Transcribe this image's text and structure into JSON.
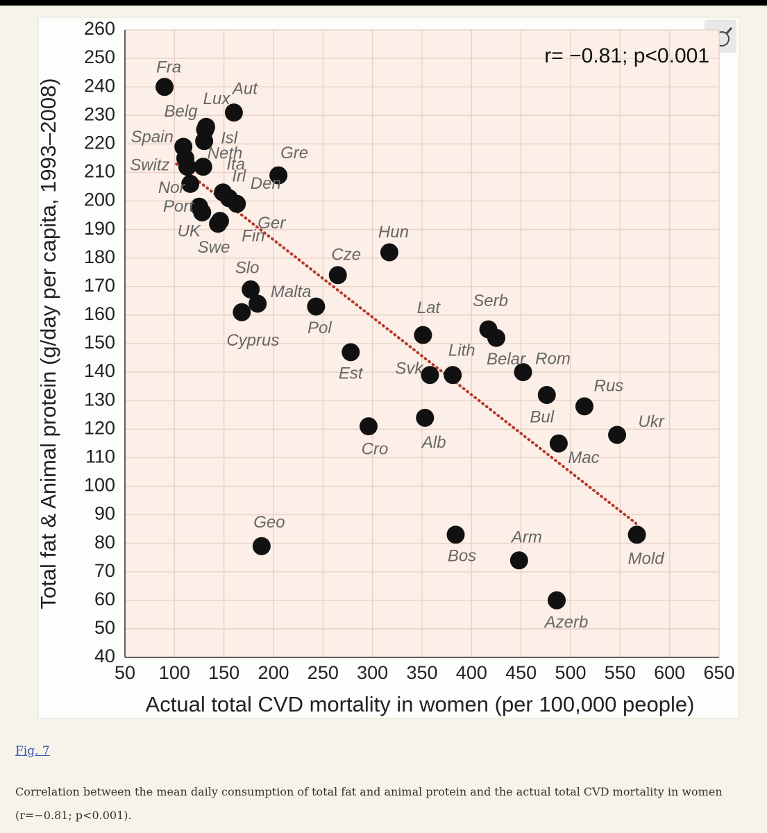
{
  "chart_data": {
    "type": "scatter",
    "annotation": "r= −0.81; p<0.001",
    "xlabel": "Actual total CVD  mortality in women (per 100,000 people)",
    "ylabel": "Total fat & Animal protein (g/day per capita, 1993–2008)",
    "labels": [
      "Fra",
      "Aut",
      "Lux",
      "Belg",
      "Isl",
      "Spain",
      "Neth",
      "Switz",
      "Ita",
      "Nor",
      "Gre",
      "Irl",
      "Den",
      "Port",
      "Ger",
      "UK",
      "Fin",
      "Swe",
      "Hun",
      "Cze",
      "Slo",
      "Malta",
      "Cyprus",
      "Pol",
      "Lat",
      "Serb",
      "Belar",
      "Rom",
      "Est",
      "Svk",
      "Lith",
      "Bul",
      "Rus",
      "Ukr",
      "Mac",
      "Cro",
      "Alb",
      "Geo",
      "Bos",
      "Arm",
      "Azerb",
      "Mold"
    ],
    "x": [
      90,
      160,
      132,
      131,
      130,
      109,
      111,
      113,
      129,
      116,
      205,
      149,
      155,
      125,
      163,
      128,
      146,
      144,
      317,
      265,
      177,
      184,
      168,
      243,
      351,
      417,
      425,
      452,
      278,
      358,
      381,
      476,
      514,
      547,
      488,
      296,
      353,
      188,
      384,
      448,
      486,
      567
    ],
    "y": [
      240,
      231,
      226,
      225,
      221,
      219,
      215,
      212,
      212,
      206,
      209,
      203,
      201,
      198,
      199,
      196,
      193,
      192,
      182,
      174,
      169,
      164,
      161,
      163,
      153,
      155,
      152,
      140,
      147,
      139,
      139,
      132,
      128,
      118,
      115,
      121,
      124,
      79,
      83,
      74,
      60,
      83
    ],
    "color": "#111111",
    "trendline": {
      "x": [
        102,
        566
      ],
      "y": [
        213,
        87
      ],
      "color": "#b5382c"
    },
    "xlim": [
      50,
      650
    ],
    "ylim": [
      40,
      260
    ],
    "xticks": [
      50,
      100,
      150,
      200,
      250,
      300,
      350,
      400,
      450,
      500,
      550,
      600,
      650
    ],
    "yticks": [
      40,
      50,
      60,
      70,
      80,
      90,
      100,
      110,
      120,
      130,
      140,
      150,
      160,
      170,
      180,
      190,
      200,
      210,
      220,
      230,
      240,
      250,
      260
    ],
    "grid": true
  },
  "figure": {
    "link": "Fig. 7",
    "caption": "Correlation between the mean daily consumption of total fat and animal protein and the actual total CVD mortality in women (r=−0.81; p<0.001)."
  }
}
